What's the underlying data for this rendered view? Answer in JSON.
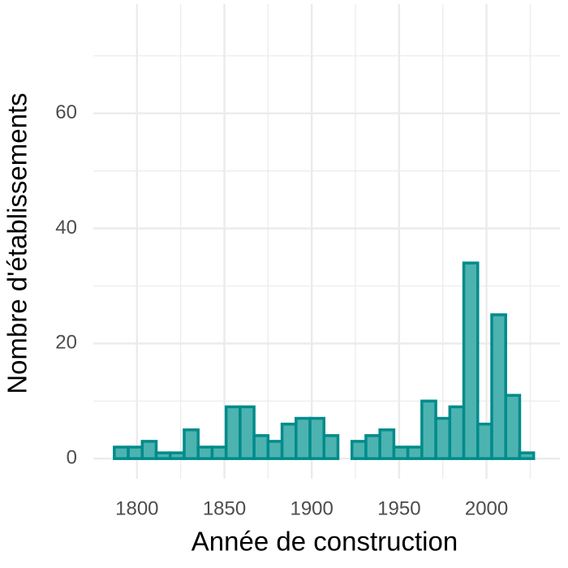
{
  "chart_data": {
    "type": "histogram",
    "x_label": "Année de construction",
    "y_label": "Nombre d'établissements",
    "bins": [
      1787,
      1795,
      1803,
      1811,
      1819,
      1827,
      1835,
      1843,
      1851,
      1859,
      1867,
      1875,
      1883,
      1891,
      1899,
      1907,
      1915,
      1923,
      1931,
      1939,
      1947,
      1955,
      1963,
      1971,
      1979,
      1987,
      1995,
      2003,
      2011,
      2019,
      2027
    ],
    "values": [
      2,
      2,
      3,
      1,
      1,
      5,
      2,
      2,
      9,
      9,
      4,
      3,
      6,
      7,
      7,
      4,
      0,
      3,
      4,
      5,
      2,
      2,
      10,
      7,
      9,
      34,
      6,
      25,
      11,
      1
    ],
    "color": "#008b8b",
    "fill": "#4db3b0",
    "xlim": [
      1775,
      2042
    ],
    "ylim": [
      -3.5,
      79
    ],
    "xticks": [
      1800,
      1850,
      1900,
      1950,
      2000
    ],
    "yticks": [
      0,
      20,
      40,
      60
    ],
    "minor_xticks": [
      1825,
      1875,
      1925,
      1975,
      2025
    ],
    "minor_yticks": [
      10,
      30,
      50,
      70
    ],
    "grid": true
  }
}
